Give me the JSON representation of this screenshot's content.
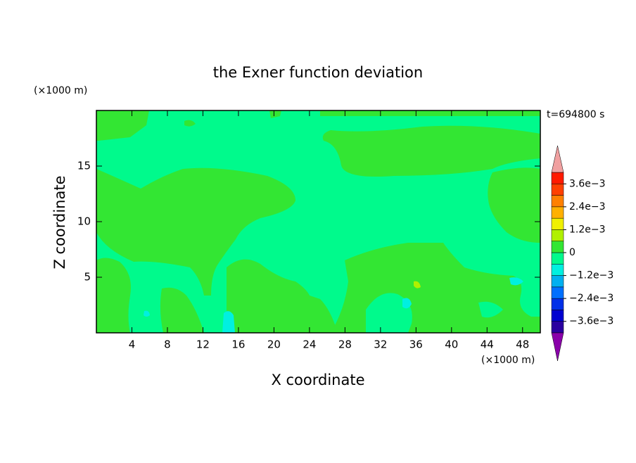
{
  "chart_data": {
    "type": "contour",
    "title": "the Exner function deviation",
    "xlabel": "X coordinate",
    "ylabel": "Z coordinate",
    "xunit": "(×1000 m)",
    "yunit": "(×1000 m)",
    "time_label": "t=694800 s",
    "xlim": [
      0,
      50
    ],
    "xticks": [
      4,
      8,
      12,
      16,
      20,
      24,
      28,
      32,
      36,
      40,
      44,
      48
    ],
    "ylim": [
      0,
      20
    ],
    "yticks": [
      5,
      10,
      15
    ],
    "colorbar": {
      "levels": [
        -0.0042,
        -0.0036,
        -0.003,
        -0.0024,
        -0.0018,
        -0.0012,
        -0.0006,
        0,
        0.0006,
        0.0012,
        0.0018,
        0.0024,
        0.003,
        0.0036,
        0.0042
      ],
      "colors": [
        "#2a00a0",
        "#0000d0",
        "#0030e8",
        "#0070ff",
        "#00b0f0",
        "#00f0e0",
        "#00fa8c",
        "#33e633",
        "#b0f000",
        "#f0f000",
        "#ffb000",
        "#ff8000",
        "#ff4000",
        "#ff1a00"
      ],
      "under_color": "#8a00aa",
      "over_color": "#f0a0a0",
      "ticks": [
        {
          "value": -0.0036,
          "label": "−3.6e−3"
        },
        {
          "value": -0.0024,
          "label": "−2.4e−3"
        },
        {
          "value": -0.0012,
          "label": "−1.2e−3"
        },
        0,
        {
          "value": 0.0012,
          "label": "1.2e−3"
        },
        {
          "value": 0.0024,
          "label": "2.4e−3"
        },
        {
          "value": 0.0036,
          "label": "3.6e−3"
        }
      ]
    }
  }
}
